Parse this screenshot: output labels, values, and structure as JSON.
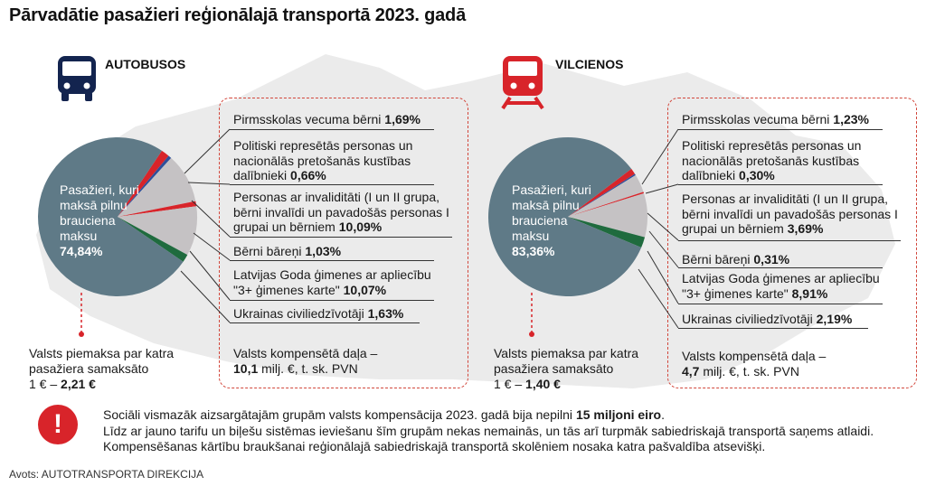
{
  "title": "Pārvadātie pasažieri reģionālajā transportā 2023. gadā",
  "colors": {
    "full_pay": "#5f7a87",
    "preschool": "#d8242a",
    "repressed": "#2d4f9a",
    "disabled": "#c5c2c4",
    "orphans": "#d8242a",
    "large_family": "#c5c2c4",
    "ukraine": "#1f6b3e",
    "accent": "#d8242a",
    "bus_icon": "#13244f",
    "train_icon": "#d8242a"
  },
  "bus": {
    "label": "AUTOBUSOS",
    "icon": "bus-icon",
    "pie_label": "Pasažieri, kuri maksā pilnu brauciena maksu",
    "pie_value": "74,84%",
    "state_note": "Valsts piemaksa par katra pasažiera samaksāto",
    "state_value_prefix": "1 € – ",
    "state_value": "2,21 €",
    "compensation_label": "Valsts kompensētā daļa –",
    "compensation_value": "10,1",
    "compensation_suffix": " milj. €, t. sk. PVN",
    "categories": [
      {
        "label": "Pirmsskolas vecuma bērni ",
        "value": "1,69%"
      },
      {
        "label": "Politiski represētās personas un nacionālās pretošanās kustības dalībnieki ",
        "value": "0,66%"
      },
      {
        "label": "Personas ar invaliditāti (I un II grupa, bērni invalīdi un pavadošās personas I grupai un bērniem ",
        "value": "10,09%"
      },
      {
        "label": "Bērni bāreņi ",
        "value": "1,03%"
      },
      {
        "label": "Latvijas Goda ģimenes ar apliecību \"3+ ģimenes karte\" ",
        "value": "10,07%"
      },
      {
        "label": "Ukrainas civiliedzīvotāji ",
        "value": "1,63%"
      }
    ]
  },
  "train": {
    "label": "VILCIENOS",
    "icon": "train-icon",
    "pie_label": "Pasažieri, kuri maksā pilnu brauciena maksu",
    "pie_value": "83,36%",
    "state_note": "Valsts piemaksa par katra pasažiera samaksāto",
    "state_value_prefix": "1 € – ",
    "state_value": "1,40 €",
    "compensation_label": "Valsts kompensētā daļa –",
    "compensation_value": "4,7",
    "compensation_suffix": " milj. €, t. sk. PVN",
    "categories": [
      {
        "label": "Pirmsskolas vecuma bērni ",
        "value": "1,23%"
      },
      {
        "label": "Politiski represētās personas un nacionālās pretošanās kustības dalībnieki ",
        "value": "0,30%"
      },
      {
        "label": "Personas ar invaliditāti (I un II grupa, bērni invalīdi un pavadošās personas I grupai un bērniem ",
        "value": "3,69%"
      },
      {
        "label": "Bērni bāreņi ",
        "value": "0,31%"
      },
      {
        "label": "Latvijas Goda ģimenes ar apliecību \"3+ ģimenes karte\" ",
        "value": "8,91%"
      },
      {
        "label": "Ukrainas civiliedzīvotāji ",
        "value": "2,19%"
      }
    ]
  },
  "footer": {
    "alert_icon": "exclamation-icon",
    "line1_pre": "Sociāli vismazāk aizsargātajām grupām valsts kompensācija 2023. gadā bija nepilni ",
    "line1_bold": "15 miljoni eiro",
    "line1_post": ".",
    "line2": "Līdz ar jauno tarifu un biļešu sistēmas ieviešanu šīm grupām nekas nemainās, un tās arī turpmāk sabiedriskajā transportā saņems atlaidi.",
    "line3": "Kompensēšanas kārtību braukšanai reģionālajā sabiedriskajā transportā skolēniem nosaka katra pašvaldība atsevišķi."
  },
  "source": "Avots: AUTOTRANSPORTA DIREKCIJA",
  "chart_data": [
    {
      "type": "pie",
      "title": "AUTOBUSOS",
      "categories": [
        "Pasažieri, kuri maksā pilnu brauciena maksu",
        "Pirmsskolas vecuma bērni",
        "Politiski represētās personas un nacionālās pretošanās kustības dalībnieki",
        "Personas ar invaliditāti (I un II grupa, bērni invalīdi un pavadošās personas I grupai un bērniem",
        "Bērni bāreņi",
        "Latvijas Goda ģimenes ar apliecību \"3+ ģimenes karte\"",
        "Ukrainas civiliedzīvotāji"
      ],
      "values": [
        74.84,
        1.69,
        0.66,
        10.09,
        1.03,
        10.07,
        1.63
      ]
    },
    {
      "type": "pie",
      "title": "VILCIENOS",
      "categories": [
        "Pasažieri, kuri maksā pilnu brauciena maksu",
        "Pirmsskolas vecuma bērni",
        "Politiski represētās personas un nacionālās pretošanās kustības dalībnieki",
        "Personas ar invaliditāti (I un II grupa, bērni invalīdi un pavadošās personas I grupai un bērniem",
        "Bērni bāreņi",
        "Latvijas Goda ģimenes ar apliecību \"3+ ģimenes karte\"",
        "Ukrainas civiliedzīvotāji"
      ],
      "values": [
        83.36,
        1.23,
        0.3,
        3.69,
        0.31,
        8.91,
        2.19
      ]
    }
  ]
}
